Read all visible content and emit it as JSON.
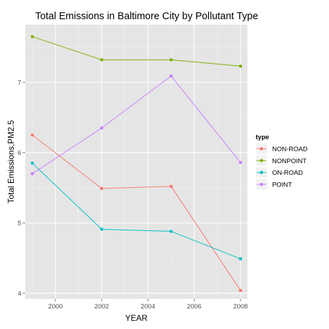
{
  "chart_data": {
    "type": "line",
    "title": "Total Emissions in Baltimore City by Pollutant Type",
    "xlabel": "YEAR",
    "ylabel": "Total Emissions,PM2.5",
    "x": [
      1999,
      2002,
      2005,
      2008
    ],
    "xlim": [
      1998.7,
      2008.3
    ],
    "ylim": [
      3.92,
      7.82
    ],
    "x_ticks": [
      2000,
      2002,
      2004,
      2006,
      2008
    ],
    "y_ticks": [
      4,
      5,
      6,
      7
    ],
    "x_tick_labels": [
      "2000",
      "2002",
      "2004",
      "2006",
      "2008"
    ],
    "y_tick_labels": [
      "4",
      "5",
      "6",
      "7"
    ],
    "grid": true,
    "panel_background": "#e5e5e5",
    "grid_color": "#ffffff",
    "legend": {
      "title": "type",
      "placement": "right"
    },
    "series": [
      {
        "name": "NON-ROAD",
        "color": "#f8766d",
        "values": [
          6.25,
          5.49,
          5.52,
          4.04
        ]
      },
      {
        "name": "NONPOINT",
        "color": "#7cae00",
        "values": [
          7.65,
          7.32,
          7.32,
          7.23
        ]
      },
      {
        "name": "ON-ROAD",
        "color": "#00bfc4",
        "values": [
          5.85,
          4.91,
          4.88,
          4.49
        ]
      },
      {
        "name": "POINT",
        "color": "#c77cff",
        "values": [
          5.7,
          6.35,
          7.09,
          5.86
        ]
      }
    ]
  }
}
